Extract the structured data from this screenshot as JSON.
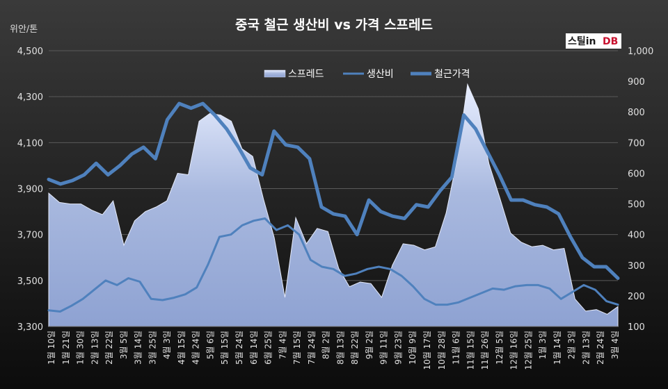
{
  "chart_data": {
    "type": "line",
    "title": "중국 철근 생산비 vs 가격 스프레드",
    "y_left_unit": "위안/톤",
    "logo": {
      "text_main": "스틸in",
      "text_db": "DB"
    },
    "legend": {
      "position": "top-center",
      "items": [
        {
          "key": "spread",
          "label": "스프레드"
        },
        {
          "key": "cost",
          "label": "생산비"
        },
        {
          "key": "price",
          "label": "철근가격"
        }
      ]
    },
    "y_left": {
      "min": 3300,
      "max": 4500,
      "ticks": [
        "3,300",
        "3,500",
        "3,700",
        "3,900",
        "4,100",
        "4,300",
        "4,500"
      ]
    },
    "y_right": {
      "min": 100,
      "max": 1000,
      "ticks": [
        "100",
        "200",
        "300",
        "400",
        "500",
        "600",
        "700",
        "800",
        "900",
        "1,000"
      ]
    },
    "x_tick_labels": [
      "1월 10일",
      "1월 21일",
      "1월 30일",
      "2월 13일",
      "2월 22일",
      "3월 5일",
      "3월 14일",
      "3월 25일",
      "4월 3일",
      "4월 15일",
      "4월 24일",
      "5월 6일",
      "5월 15일",
      "5월 24일",
      "6월 14일",
      "6월 25일",
      "7월 4일",
      "7월 15일",
      "7월 24일",
      "8월 2일",
      "8월 13일",
      "8월 22일",
      "9월 2일",
      "9월 11일",
      "9월 23일",
      "10월 9일",
      "10월 17일",
      "10월 28일",
      "11월 6일",
      "11월 15일",
      "11월 26일",
      "12월 5일",
      "12월 16일",
      "12월 25일",
      "1월 3일",
      "1월 14일",
      "2월 3일",
      "2월 13일",
      "2월 24일",
      "3월 4일"
    ],
    "series": [
      {
        "name": "스프레드",
        "axis": "right",
        "color": "#b9c7e6",
        "values": [
          535,
          505,
          500,
          500,
          480,
          465,
          510,
          365,
          445,
          475,
          490,
          510,
          600,
          595,
          770,
          795,
          790,
          770,
          680,
          655,
          515,
          390,
          195,
          455,
          370,
          420,
          410,
          290,
          230,
          245,
          240,
          195,
          300,
          370,
          365,
          350,
          360,
          470,
          640,
          890,
          810,
          630,
          520,
          405,
          375,
          360,
          365,
          350,
          355,
          190,
          150,
          155,
          140,
          165
        ]
      },
      {
        "name": "생산비",
        "axis": "left",
        "color": "#4f81bd",
        "values": [
          3370,
          3365,
          3390,
          3420,
          3460,
          3500,
          3480,
          3510,
          3495,
          3420,
          3415,
          3425,
          3440,
          3470,
          3570,
          3690,
          3700,
          3740,
          3760,
          3770,
          3720,
          3740,
          3700,
          3590,
          3560,
          3550,
          3520,
          3530,
          3550,
          3560,
          3550,
          3520,
          3475,
          3420,
          3395,
          3395,
          3405,
          3425,
          3445,
          3465,
          3460,
          3475,
          3480,
          3480,
          3465,
          3420,
          3450,
          3480,
          3460,
          3410,
          3395
        ]
      },
      {
        "name": "철근가격",
        "axis": "left",
        "color": "#4f81bd",
        "values": [
          3940,
          3920,
          3935,
          3960,
          4010,
          3960,
          4000,
          4050,
          4080,
          4030,
          4200,
          4270,
          4250,
          4270,
          4220,
          4160,
          4080,
          3990,
          3960,
          4150,
          4090,
          4080,
          4030,
          3820,
          3790,
          3780,
          3700,
          3850,
          3800,
          3780,
          3770,
          3830,
          3820,
          3890,
          3950,
          4220,
          4160,
          4060,
          3960,
          3850,
          3850,
          3830,
          3820,
          3790,
          3690,
          3600,
          3560,
          3560,
          3510
        ]
      }
    ]
  }
}
